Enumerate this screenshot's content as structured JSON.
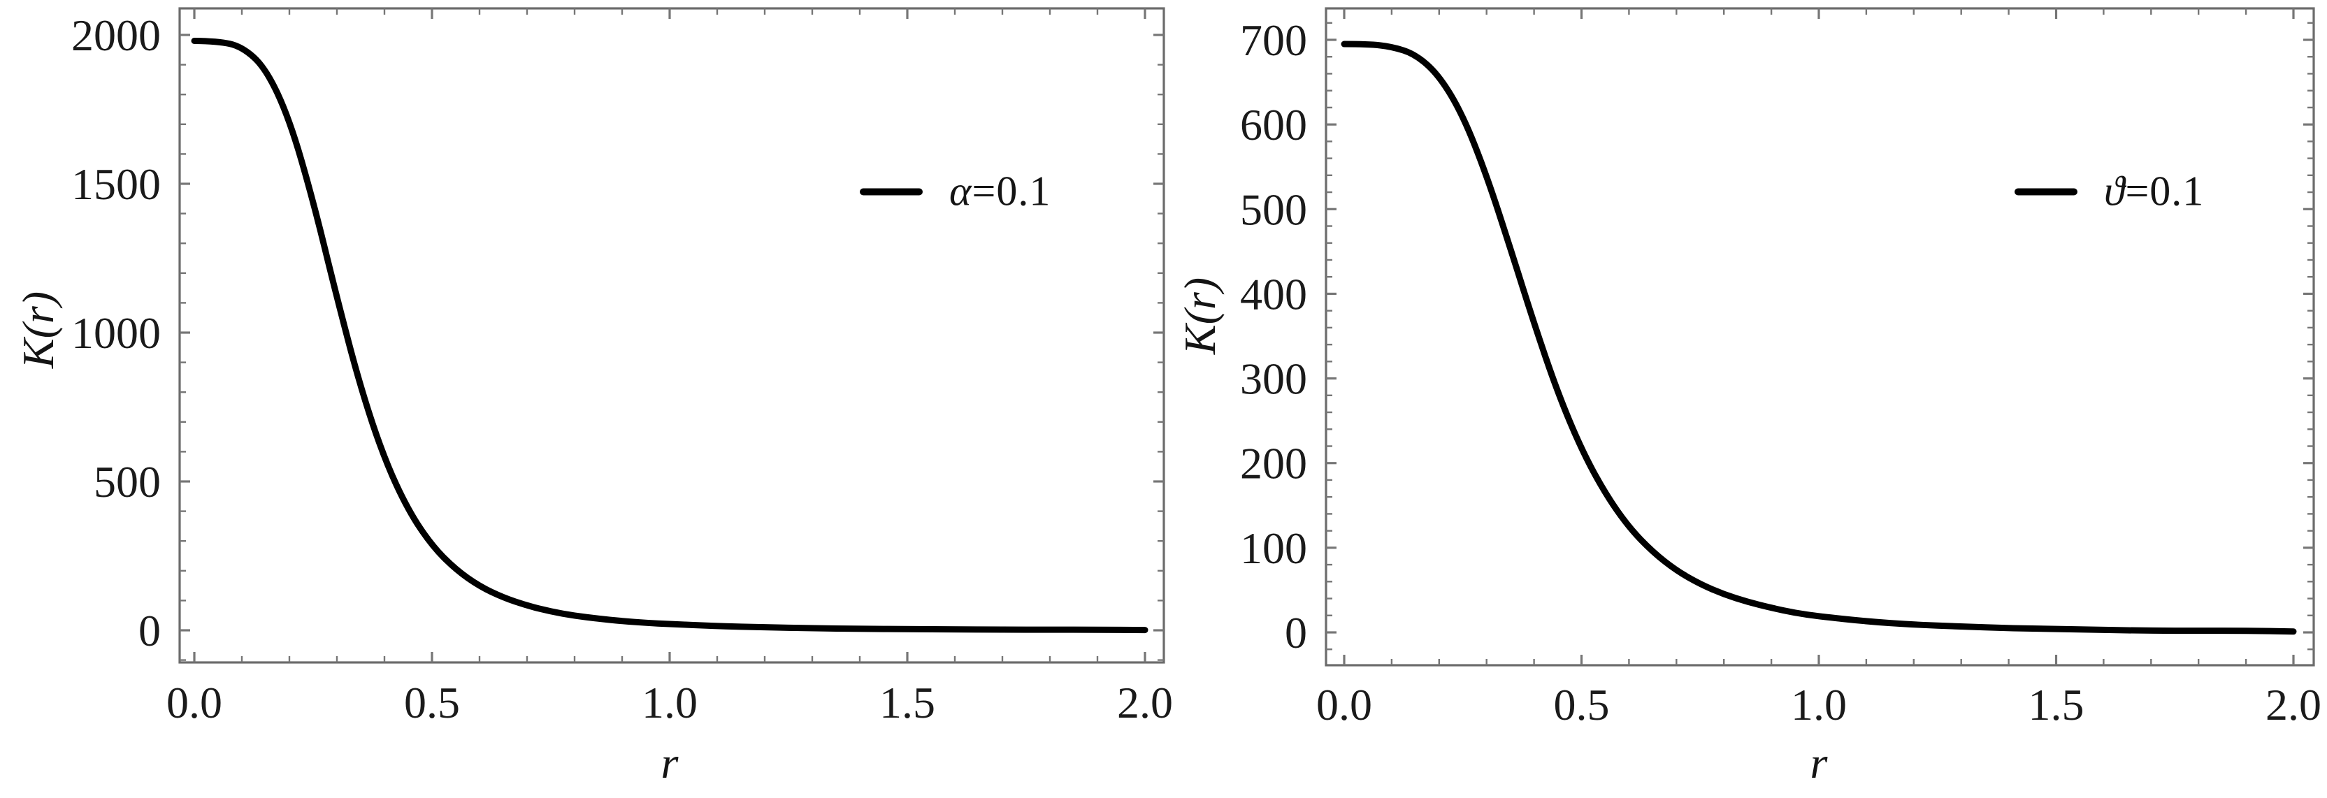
{
  "page": {
    "background": "#ffffff"
  },
  "style": {
    "frame_color": "#6b6b6b",
    "tick_color": "#767676",
    "text_color": "#1a1a1a",
    "curve_color": "#000000"
  },
  "chart_data": [
    {
      "type": "line",
      "title": "",
      "xlabel": "r",
      "ylabel": "K(r)",
      "xlim": [
        0,
        2.0
      ],
      "ylim": [
        0,
        2000
      ],
      "grid": false,
      "frame": true,
      "x_ticks": [
        0,
        0.5,
        1.0,
        1.5,
        2.0
      ],
      "x_tick_labels": [
        "0.0",
        "0.5",
        "1.0",
        "1.5",
        "2.0"
      ],
      "x_minor_step": 0.1,
      "y_ticks": [
        0,
        500,
        1000,
        1500,
        2000
      ],
      "y_tick_labels": [
        "0",
        "500",
        "1000",
        "1500",
        "2000"
      ],
      "y_minor_step": 100,
      "legend": {
        "label": "α=0.1",
        "position": "upper-right-inside",
        "line_color": "#000000"
      },
      "series": [
        {
          "name": "α=0.1",
          "color": "#000000",
          "x": [
            0,
            0.05,
            0.1,
            0.15,
            0.2,
            0.25,
            0.3,
            0.35,
            0.4,
            0.45,
            0.5,
            0.55,
            0.6,
            0.65,
            0.7,
            0.75,
            0.8,
            0.85,
            0.9,
            0.95,
            1.0,
            1.1,
            1.2,
            1.3,
            1.4,
            1.5,
            1.6,
            1.7,
            1.8,
            1.9,
            2.0
          ],
          "y": [
            1980,
            1979,
            1961,
            1889,
            1718,
            1443,
            1117,
            814,
            575,
            403,
            284,
            204,
            148,
            110,
            83,
            63,
            49,
            39,
            31,
            25,
            21,
            14,
            10,
            7,
            5,
            4,
            3,
            2,
            2,
            2,
            1
          ]
        }
      ]
    },
    {
      "type": "line",
      "title": "",
      "xlabel": "r",
      "ylabel": "K(r)",
      "xlim": [
        0,
        2.0
      ],
      "ylim": [
        0,
        700
      ],
      "grid": false,
      "frame": true,
      "x_ticks": [
        0,
        0.5,
        1.0,
        1.5,
        2.0
      ],
      "x_tick_labels": [
        "0.0",
        "0.5",
        "1.0",
        "1.5",
        "2.0"
      ],
      "x_minor_step": 0.1,
      "y_ticks": [
        0,
        100,
        200,
        300,
        400,
        500,
        600,
        700
      ],
      "y_tick_labels": [
        "0",
        "100",
        "200",
        "300",
        "400",
        "500",
        "600",
        "700"
      ],
      "y_minor_step": 20,
      "legend": {
        "label": "ϑ=0.1",
        "position": "upper-right-inside",
        "line_color": "#000000"
      },
      "series": [
        {
          "name": "ϑ=0.1",
          "color": "#000000",
          "x": [
            0,
            0.05,
            0.1,
            0.15,
            0.2,
            0.25,
            0.3,
            0.35,
            0.4,
            0.45,
            0.5,
            0.55,
            0.6,
            0.65,
            0.7,
            0.75,
            0.8,
            0.85,
            0.9,
            0.95,
            1.0,
            1.1,
            1.2,
            1.3,
            1.4,
            1.5,
            1.6,
            1.7,
            1.8,
            1.9,
            2.0
          ],
          "y": [
            695,
            695,
            692,
            683,
            658,
            611,
            540,
            454,
            365,
            283,
            216,
            164,
            124,
            95,
            73,
            57,
            45,
            36,
            29,
            23,
            19,
            13,
            9,
            7,
            5,
            4,
            3,
            2,
            2,
            2,
            1
          ]
        }
      ]
    }
  ]
}
